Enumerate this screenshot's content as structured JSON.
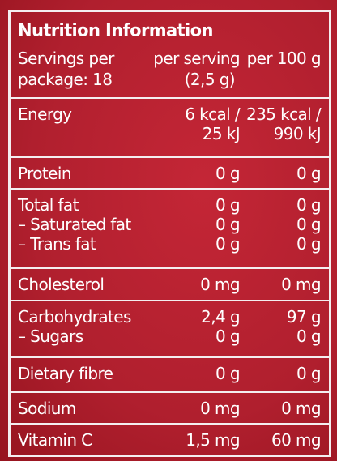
{
  "header": {
    "title": "Nutrition Information",
    "servings": [
      "Servings per",
      "package: 18"
    ],
    "per_serving": [
      "per serving",
      "(2,5 g)"
    ],
    "per_100g": "per 100 g"
  },
  "sections": [
    {
      "rows": [
        {
          "label": "Energy",
          "per_serving": [
            "6 kcal /",
            "25 kJ"
          ],
          "per_100g": [
            "235 kcal /",
            "990 kJ"
          ]
        }
      ]
    },
    {
      "rows": [
        {
          "label": "Protein",
          "per_serving": "0 g",
          "per_100g": "0 g"
        }
      ]
    },
    {
      "rows": [
        {
          "label": "Total fat",
          "per_serving": "0 g",
          "per_100g": "0 g"
        },
        {
          "label": "– Saturated fat",
          "per_serving": "0 g",
          "per_100g": "0 g"
        },
        {
          "label": "– Trans fat",
          "per_serving": "0 g",
          "per_100g": "0 g"
        }
      ]
    },
    {
      "rows": [
        {
          "label": "Cholesterol",
          "per_serving": "0 mg",
          "per_100g": "0 mg"
        }
      ]
    },
    {
      "rows": [
        {
          "label": "Carbohydrates",
          "per_serving": "2,4 g",
          "per_100g": "97 g"
        },
        {
          "label": "– Sugars",
          "per_serving": "0 g",
          "per_100g": "0 g"
        }
      ]
    },
    {
      "rows": [
        {
          "label": "Dietary fibre",
          "per_serving": "0 g",
          "per_100g": "0 g"
        }
      ]
    },
    {
      "rows": [
        {
          "label": "Sodium",
          "per_serving": "0 mg",
          "per_100g": "0 mg"
        }
      ]
    },
    {
      "rows": [
        {
          "label": "Vitamin C",
          "per_serving": "1,5 mg",
          "per_100g": "60 mg"
        }
      ]
    }
  ]
}
